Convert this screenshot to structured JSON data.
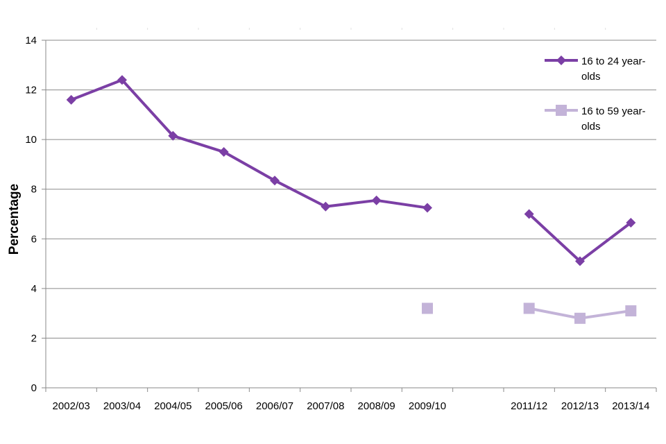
{
  "chart_data": {
    "type": "line",
    "title": "",
    "xlabel": "",
    "ylabel": "Percentage",
    "ylim": [
      0,
      14
    ],
    "yticks": [
      0,
      2,
      4,
      6,
      8,
      10,
      12,
      14
    ],
    "grid": "horizontal",
    "legend_position": "top-right",
    "categories": [
      "2002/03",
      "2003/04",
      "2004/05",
      "2005/06",
      "2006/07",
      "2007/08",
      "2008/09",
      "2009/10",
      "",
      "2011/12",
      "2012/13",
      "2013/14"
    ],
    "series": [
      {
        "name": "16 to 24 year-olds",
        "legend_lines": [
          "16 to 24 year-",
          "olds"
        ],
        "marker": "diamond",
        "color": "#7B3FA5",
        "values": [
          11.6,
          12.4,
          10.15,
          9.5,
          8.35,
          7.3,
          7.55,
          7.25,
          null,
          7.0,
          5.1,
          6.65
        ]
      },
      {
        "name": "16 to 59 year-olds",
        "legend_lines": [
          "16 to 59 year-",
          "olds"
        ],
        "marker": "square",
        "color": "#C3B3D8",
        "values": [
          null,
          null,
          null,
          null,
          null,
          null,
          null,
          3.2,
          null,
          3.2,
          2.8,
          3.1
        ]
      }
    ]
  }
}
